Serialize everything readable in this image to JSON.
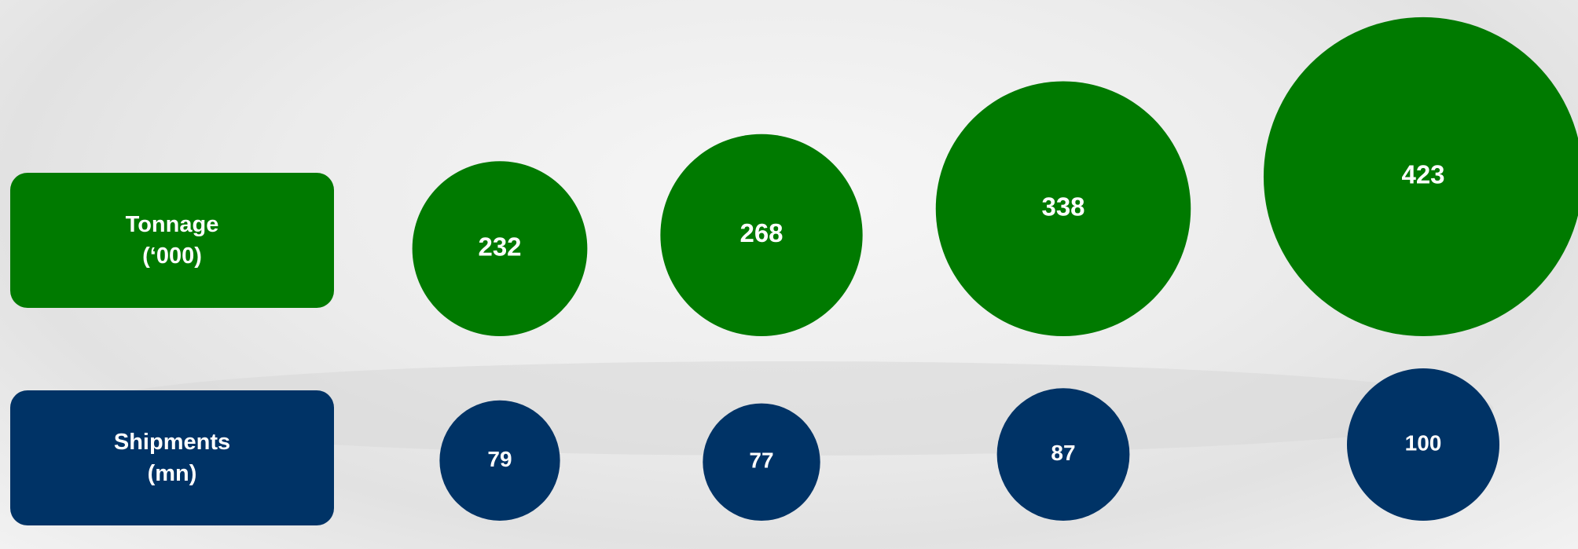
{
  "chart_data": {
    "type": "bubble",
    "series": [
      {
        "name": "Tonnage\n(‘000)",
        "color": "#007a00",
        "values": [
          232,
          268,
          338,
          423
        ]
      },
      {
        "name": "Shipments\n(mn)",
        "color": "#003366",
        "values": [
          79,
          77,
          87,
          100
        ]
      }
    ]
  }
}
